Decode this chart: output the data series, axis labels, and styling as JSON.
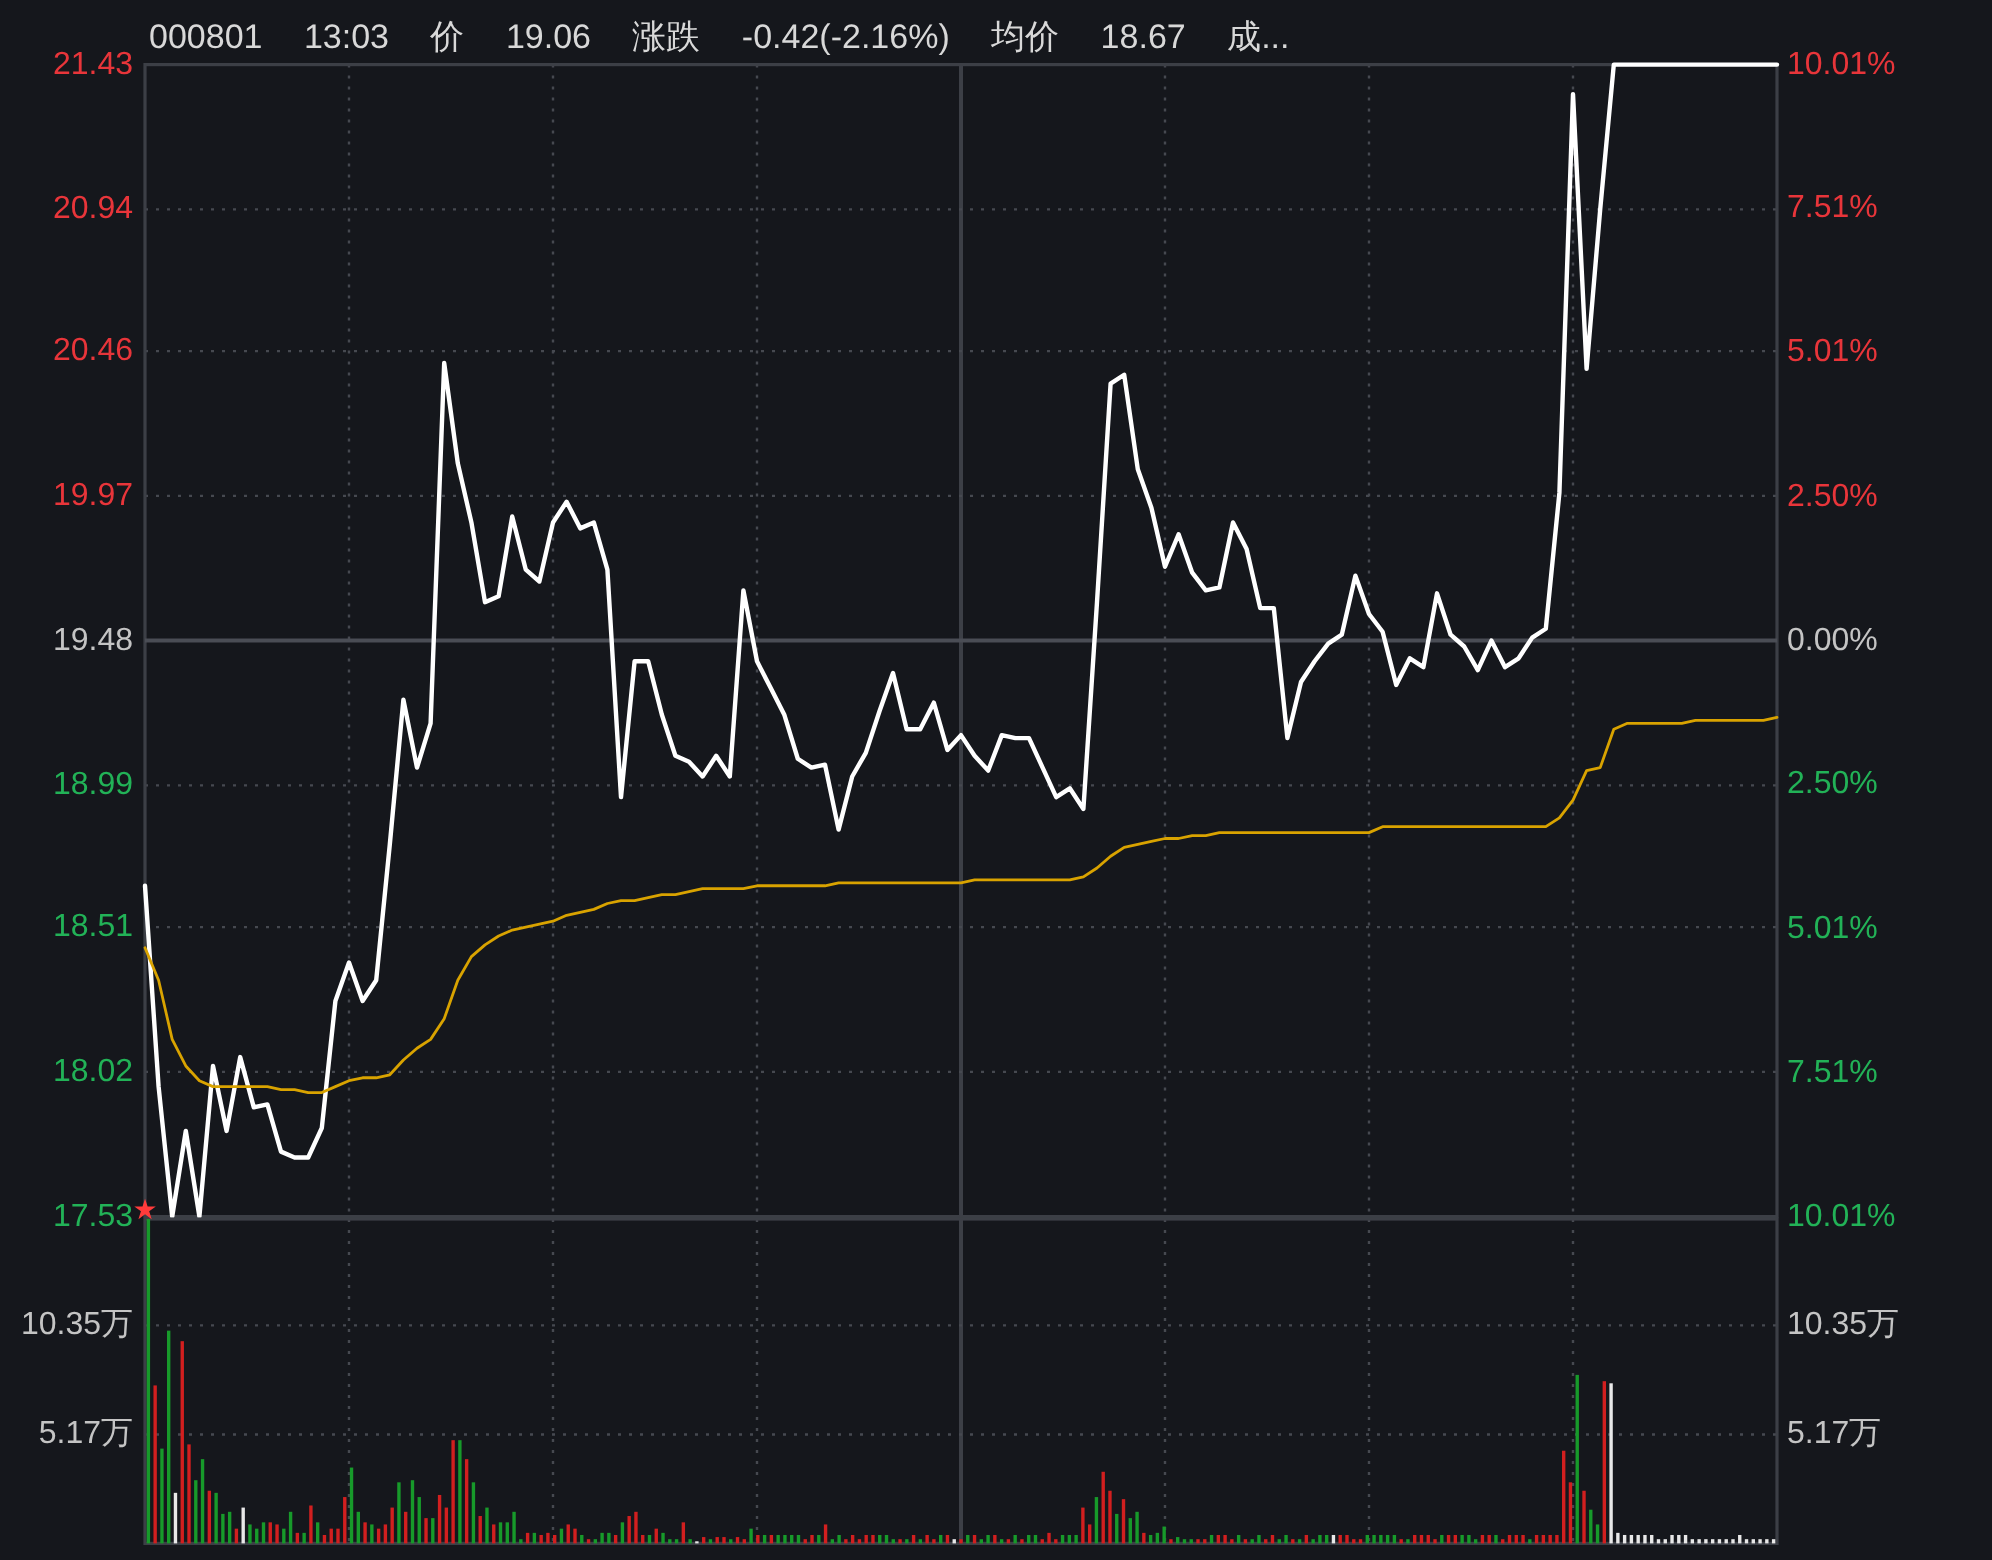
{
  "chart_data": [
    {
      "type": "line",
      "title": "000801 13:03 价 19.06 涨跌 -0.42(-2.16%) 均价 18.67 成...",
      "categories": [
        null,
        null,
        null,
        null,
        null,
        null,
        null,
        null,
        null,
        null,
        null,
        null,
        null,
        null,
        null,
        null,
        null,
        null,
        null,
        null,
        null,
        null,
        null,
        null,
        null,
        null,
        null,
        null,
        null,
        null,
        null,
        null,
        null,
        null,
        null,
        null,
        null,
        null,
        null,
        null,
        null,
        null,
        null,
        null,
        null,
        null,
        null,
        null,
        null,
        null,
        null,
        null,
        null,
        null,
        null,
        null,
        null,
        null,
        null,
        null,
        null,
        null,
        null,
        null,
        null,
        null,
        null,
        null,
        null,
        null,
        null,
        null,
        null,
        null,
        null,
        null,
        null,
        null,
        null,
        null,
        null,
        null,
        null,
        null,
        null,
        null,
        null,
        null,
        null,
        null,
        null,
        null,
        null,
        null,
        null,
        null,
        null,
        null,
        null,
        null,
        null,
        null,
        null,
        null,
        null,
        null,
        null,
        null,
        null,
        null,
        null,
        null,
        null,
        null,
        null,
        null,
        null,
        null,
        null,
        null,
        null
      ],
      "series": [
        {
          "color": "#ffffff",
          "values": [
            18.65,
            17.97,
            17.53,
            17.82,
            17.53,
            18.04,
            17.82,
            18.07,
            17.9,
            17.91,
            17.75,
            17.73,
            17.73,
            17.83,
            18.26,
            18.39,
            18.26,
            18.33,
            18.79,
            19.28,
            19.05,
            19.2,
            20.42,
            20.08,
            19.88,
            19.61,
            19.63,
            19.9,
            19.72,
            19.68,
            19.88,
            19.95,
            19.86,
            19.88,
            19.72,
            18.95,
            19.41,
            19.41,
            19.23,
            19.09,
            19.07,
            19.02,
            19.09,
            19.02,
            19.65,
            19.41,
            19.32,
            19.23,
            19.08,
            19.05,
            19.06,
            18.84,
            19.02,
            19.1,
            19.24,
            19.37,
            19.18,
            19.18,
            19.27,
            19.11,
            19.16,
            19.09,
            19.04,
            19.16,
            19.15,
            19.15,
            19.05,
            18.95,
            18.98,
            18.91,
            19.61,
            20.35,
            20.38,
            20.06,
            19.93,
            19.73,
            19.84,
            19.71,
            19.65,
            19.66,
            19.88,
            19.79,
            19.59,
            19.59,
            19.15,
            19.34,
            19.41,
            19.47,
            19.5,
            19.7,
            19.57,
            19.51,
            19.33,
            19.42,
            19.39,
            19.64,
            19.5,
            19.46,
            19.38,
            19.48,
            19.39,
            19.42,
            19.49,
            19.52,
            19.98,
            21.33,
            20.4,
            20.94,
            21.43,
            21.43,
            21.43,
            21.43,
            21.43,
            21.43,
            21.43,
            21.43,
            21.43,
            21.43,
            21.43,
            21.43,
            21.43
          ]
        },
        {
          "color": "#d9a300",
          "values": [
            18.44,
            18.33,
            18.13,
            18.04,
            17.99,
            17.97,
            17.97,
            17.97,
            17.97,
            17.97,
            17.96,
            17.96,
            17.95,
            17.95,
            17.97,
            17.99,
            18.0,
            18.0,
            18.01,
            18.06,
            18.1,
            18.13,
            18.2,
            18.33,
            18.41,
            18.45,
            18.48,
            18.5,
            18.51,
            18.52,
            18.53,
            18.55,
            18.56,
            18.57,
            18.59,
            18.6,
            18.6,
            18.61,
            18.62,
            18.62,
            18.63,
            18.64,
            18.64,
            18.64,
            18.64,
            18.65,
            18.65,
            18.65,
            18.65,
            18.65,
            18.65,
            18.66,
            18.66,
            18.66,
            18.66,
            18.66,
            18.66,
            18.66,
            18.66,
            18.66,
            18.66,
            18.67,
            18.67,
            18.67,
            18.67,
            18.67,
            18.67,
            18.67,
            18.67,
            18.68,
            18.71,
            18.75,
            18.78,
            18.79,
            18.8,
            18.81,
            18.81,
            18.82,
            18.82,
            18.83,
            18.83,
            18.83,
            18.83,
            18.83,
            18.83,
            18.83,
            18.83,
            18.83,
            18.83,
            18.83,
            18.83,
            18.85,
            18.85,
            18.85,
            18.85,
            18.85,
            18.85,
            18.85,
            18.85,
            18.85,
            18.85,
            18.85,
            18.85,
            18.85,
            18.88,
            18.94,
            19.04,
            19.05,
            19.18,
            19.2,
            19.2,
            19.2,
            19.2,
            19.2,
            19.21,
            19.21,
            19.21,
            19.21,
            19.21,
            19.21,
            19.22
          ]
        }
      ],
      "ylim": [
        17.53,
        21.43
      ],
      "yticks": [
        17.53,
        18.02,
        18.51,
        18.99,
        19.48,
        19.97,
        20.46,
        20.94,
        21.43
      ],
      "y2lim": [
        -10.01,
        10.01
      ],
      "y2ticks": [
        {
          "value": -10.01,
          "label": "10.01%"
        },
        {
          "value": -7.51,
          "label": "7.51%"
        },
        {
          "value": -5.01,
          "label": "5.01%"
        },
        {
          "value": -2.5,
          "label": "2.50%"
        },
        {
          "value": 0,
          "label": "0.00%"
        },
        {
          "value": 2.5,
          "label": "2.50%"
        },
        {
          "value": 5.01,
          "label": "5.01%"
        },
        {
          "value": 7.51,
          "label": "7.51%"
        },
        {
          "value": 10.01,
          "label": "10.01%"
        }
      ],
      "grid": true,
      "ref_lines": [
        {
          "axis": "y",
          "value": 19.48,
          "color": "#4a4d55",
          "line_style": "solid"
        }
      ],
      "annotations": [
        "★"
      ]
    },
    {
      "type": "bar",
      "categories": [
        null,
        null,
        null,
        null,
        null,
        null,
        null,
        null,
        null,
        null,
        null,
        null,
        null,
        null,
        null,
        null,
        null,
        null,
        null,
        null,
        null,
        null,
        null,
        null,
        null,
        null,
        null,
        null,
        null,
        null,
        null,
        null,
        null,
        null,
        null,
        null,
        null,
        null,
        null,
        null,
        null,
        null,
        null,
        null,
        null,
        null,
        null,
        null,
        null,
        null,
        null,
        null,
        null,
        null,
        null,
        null,
        null,
        null,
        null,
        null,
        null,
        null,
        null,
        null,
        null,
        null,
        null,
        null,
        null,
        null,
        null,
        null,
        null,
        null,
        null,
        null,
        null,
        null,
        null,
        null,
        null,
        null,
        null,
        null,
        null,
        null,
        null,
        null,
        null,
        null,
        null,
        null,
        null,
        null,
        null,
        null,
        null,
        null,
        null,
        null,
        null,
        null,
        null,
        null,
        null,
        null,
        null,
        null,
        null,
        null,
        null,
        null,
        null,
        null,
        null,
        null,
        null,
        null,
        null,
        null,
        null,
        null,
        null,
        null,
        null,
        null,
        null,
        null,
        null,
        null,
        null,
        null,
        null,
        null,
        null,
        null,
        null,
        null,
        null,
        null,
        null,
        null,
        null,
        null,
        null,
        null,
        null,
        null,
        null,
        null,
        null,
        null,
        null,
        null,
        null,
        null,
        null,
        null,
        null,
        null,
        null,
        null,
        null,
        null,
        null,
        null,
        null,
        null,
        null,
        null,
        null,
        null,
        null,
        null,
        null,
        null,
        null,
        null,
        null,
        null,
        null,
        null,
        null,
        null,
        null,
        null,
        null,
        null,
        null,
        null,
        null,
        null,
        null,
        null,
        null,
        null,
        null,
        null,
        null,
        null,
        null,
        null,
        null,
        null,
        null,
        null,
        null,
        null,
        null,
        null,
        null,
        null,
        null,
        null,
        null,
        null,
        null,
        null,
        null,
        null,
        null,
        null,
        null,
        null,
        null,
        null,
        null,
        null,
        null,
        null,
        null,
        null,
        null,
        null,
        null,
        null,
        null,
        null,
        null,
        null,
        null
      ],
      "values": [
        15.4,
        7.5,
        4.5,
        10.1,
        2.4,
        9.6,
        4.7,
        3.0,
        4.0,
        2.5,
        2.4,
        1.4,
        1.5,
        0.7,
        1.7,
        0.9,
        0.7,
        1.0,
        1.0,
        0.9,
        0.7,
        1.5,
        0.5,
        0.5,
        1.8,
        1.0,
        0.4,
        0.7,
        0.7,
        2.2,
        3.6,
        1.5,
        1.0,
        0.9,
        0.7,
        0.9,
        1.7,
        2.9,
        1.5,
        3.0,
        2.2,
        1.2,
        1.2,
        2.3,
        1.7,
        4.9,
        4.9,
        4.0,
        2.9,
        1.3,
        1.7,
        0.9,
        1.0,
        1.0,
        1.5,
        0.2,
        0.5,
        0.5,
        0.4,
        0.5,
        0.4,
        0.7,
        0.9,
        0.7,
        0.4,
        0.2,
        0.2,
        0.5,
        0.5,
        0.4,
        1.0,
        1.3,
        1.5,
        0.4,
        0.4,
        0.7,
        0.5,
        0.2,
        0.2,
        1.0,
        0.2,
        0.1,
        0.3,
        0.2,
        0.3,
        0.3,
        0.2,
        0.3,
        0.2,
        0.7,
        0.4,
        0.4,
        0.4,
        0.4,
        0.4,
        0.4,
        0.4,
        0.2,
        0.4,
        0.4,
        0.9,
        0.2,
        0.4,
        0.2,
        0.4,
        0.2,
        0.4,
        0.4,
        0.4,
        0.4,
        0.2,
        0.2,
        0.2,
        0.4,
        0.2,
        0.4,
        0.2,
        0.4,
        0.4,
        0.2,
        0.2,
        0.4,
        0.4,
        0.2,
        0.4,
        0.4,
        0.2,
        0.2,
        0.4,
        0.2,
        0.4,
        0.4,
        0.2,
        0.5,
        0.2,
        0.4,
        0.4,
        0.4,
        1.7,
        0.9,
        2.2,
        3.4,
        2.5,
        1.4,
        2.1,
        1.2,
        1.5,
        0.5,
        0.4,
        0.5,
        0.8,
        0.2,
        0.3,
        0.2,
        0.2,
        0.2,
        0.2,
        0.4,
        0.4,
        0.4,
        0.2,
        0.4,
        0.2,
        0.2,
        0.4,
        0.2,
        0.4,
        0.2,
        0.4,
        0.2,
        0.2,
        0.4,
        0.2,
        0.4,
        0.4,
        0.4,
        0.4,
        0.4,
        0.2,
        0.2,
        0.4,
        0.4,
        0.4,
        0.4,
        0.4,
        0.2,
        0.2,
        0.4,
        0.4,
        0.4,
        0.2,
        0.4,
        0.4,
        0.4,
        0.4,
        0.4,
        0.2,
        0.4,
        0.4,
        0.4,
        0.2,
        0.4,
        0.4,
        0.4,
        0.2,
        0.4,
        0.4,
        0.4,
        0.4,
        4.4,
        2.9,
        8.0,
        2.5,
        1.6,
        0.9,
        7.7,
        7.6,
        0.5,
        0.4,
        0.4,
        0.4,
        0.4,
        0.4,
        0.2,
        0.2,
        0.4,
        0.4,
        0.4,
        0.2,
        0.2,
        0.2,
        0.2,
        0.2,
        0.2,
        0.2,
        0.4,
        0.2,
        0.2,
        0.2,
        0.2,
        0.2
      ],
      "colors": [
        "#179a2a",
        "#d21f1f",
        "#179a2a",
        "#179a2a",
        "#e8e8e8",
        "#d21f1f",
        "#d21f1f",
        "#179a2a",
        "#179a2a",
        "#d21f1f",
        "#179a2a",
        "#179a2a",
        "#179a2a",
        "#d21f1f",
        "#e8e8e8",
        "#179a2a",
        "#179a2a",
        "#179a2a",
        "#d21f1f",
        "#d21f1f",
        "#179a2a",
        "#179a2a",
        "#d21f1f",
        "#179a2a",
        "#d21f1f",
        "#179a2a",
        "#d21f1f",
        "#d21f1f",
        "#d21f1f",
        "#d21f1f",
        "#179a2a",
        "#179a2a",
        "#d21f1f",
        "#179a2a",
        "#d21f1f",
        "#d21f1f",
        "#d21f1f",
        "#179a2a",
        "#d21f1f",
        "#179a2a",
        "#179a2a",
        "#d21f1f",
        "#179a2a",
        "#d21f1f",
        "#d21f1f",
        "#d21f1f",
        "#179a2a",
        "#d21f1f",
        "#179a2a",
        "#d21f1f",
        "#179a2a",
        "#d21f1f",
        "#179a2a",
        "#179a2a",
        "#179a2a",
        "#179a2a",
        "#d21f1f",
        "#179a2a",
        "#d21f1f",
        "#d21f1f",
        "#d21f1f",
        "#179a2a",
        "#d21f1f",
        "#d21f1f",
        "#179a2a",
        "#d21f1f",
        "#179a2a",
        "#179a2a",
        "#179a2a",
        "#d21f1f",
        "#179a2a",
        "#d21f1f",
        "#d21f1f",
        "#d21f1f",
        "#179a2a",
        "#d21f1f",
        "#179a2a",
        "#179a2a",
        "#179a2a",
        "#d21f1f",
        "#179a2a",
        "#e8e8e8",
        "#d21f1f",
        "#179a2a",
        "#d21f1f",
        "#d21f1f",
        "#179a2a",
        "#d21f1f",
        "#d21f1f",
        "#179a2a",
        "#d21f1f",
        "#179a2a",
        "#d21f1f",
        "#179a2a",
        "#179a2a",
        "#179a2a",
        "#179a2a",
        "#d21f1f",
        "#d21f1f",
        "#179a2a",
        "#d21f1f",
        "#179a2a",
        "#179a2a",
        "#d21f1f",
        "#d21f1f",
        "#d21f1f",
        "#d21f1f",
        "#d21f1f",
        "#179a2a",
        "#179a2a",
        "#179a2a",
        "#d21f1f",
        "#179a2a",
        "#d21f1f",
        "#179a2a",
        "#d21f1f",
        "#d21f1f",
        "#179a2a",
        "#d21f1f",
        "#e8e8e8",
        "#d21f1f",
        "#179a2a",
        "#d21f1f",
        "#179a2a",
        "#179a2a",
        "#d21f1f",
        "#179a2a",
        "#d21f1f",
        "#179a2a",
        "#d21f1f",
        "#179a2a",
        "#179a2a",
        "#d21f1f",
        "#d21f1f",
        "#d21f1f",
        "#179a2a",
        "#179a2a",
        "#179a2a",
        "#d21f1f",
        "#d21f1f",
        "#179a2a",
        "#d21f1f",
        "#d21f1f",
        "#179a2a",
        "#d21f1f",
        "#179a2a",
        "#179a2a",
        "#d21f1f",
        "#179a2a",
        "#179a2a",
        "#179a2a",
        "#d21f1f",
        "#179a2a",
        "#179a2a",
        "#179a2a",
        "#d21f1f",
        "#d21f1f",
        "#179a2a",
        "#d21f1f",
        "#d21f1f",
        "#d21f1f",
        "#179a2a",
        "#d21f1f",
        "#179a2a",
        "#179a2a",
        "#d21f1f",
        "#d21f1f",
        "#179a2a",
        "#179a2a",
        "#d21f1f",
        "#179a2a",
        "#d21f1f",
        "#179a2a",
        "#179a2a",
        "#179a2a",
        "#e8e8e8",
        "#d21f1f",
        "#d21f1f",
        "#d21f1f",
        "#d21f1f",
        "#179a2a",
        "#179a2a",
        "#179a2a",
        "#179a2a",
        "#179a2a",
        "#d21f1f",
        "#179a2a",
        "#d21f1f",
        "#d21f1f",
        "#d21f1f",
        "#d21f1f",
        "#179a2a",
        "#d21f1f",
        "#d21f1f",
        "#179a2a",
        "#179a2a",
        "#179a2a",
        "#d21f1f",
        "#d21f1f",
        "#179a2a",
        "#d21f1f",
        "#d21f1f",
        "#d21f1f",
        "#d21f1f",
        "#179a2a",
        "#d21f1f",
        "#d21f1f",
        "#d21f1f",
        "#d21f1f",
        "#d21f1f",
        "#d21f1f",
        "#179a2a",
        "#d21f1f",
        "#179a2a",
        "#179a2a",
        "#d21f1f",
        "#e8e8e8",
        "#e8e8e8",
        "#e8e8e8",
        "#e8e8e8",
        "#e8e8e8",
        "#e8e8e8",
        "#e8e8e8",
        "#e8e8e8",
        "#e8e8e8",
        "#e8e8e8",
        "#e8e8e8",
        "#e8e8e8",
        "#e8e8e8",
        "#e8e8e8",
        "#e8e8e8",
        "#e8e8e8",
        "#e8e8e8",
        "#e8e8e8",
        "#e8e8e8",
        "#e8e8e8",
        "#e8e8e8",
        "#e8e8e8",
        "#e8e8e8",
        "#e8e8e8",
        "#e8e8e8"
      ],
      "ylim": [
        0,
        15.4
      ],
      "yticks": [
        {
          "value": 5.17,
          "label": "5.17万"
        },
        {
          "value": 10.35,
          "label": "10.35万"
        }
      ],
      "y2lim": [
        0,
        15.4
      ],
      "y2ticks": [
        {
          "value": 5.17,
          "label": "5.17万"
        },
        {
          "value": 10.35,
          "label": "10.35万"
        }
      ],
      "grid": true
    }
  ]
}
